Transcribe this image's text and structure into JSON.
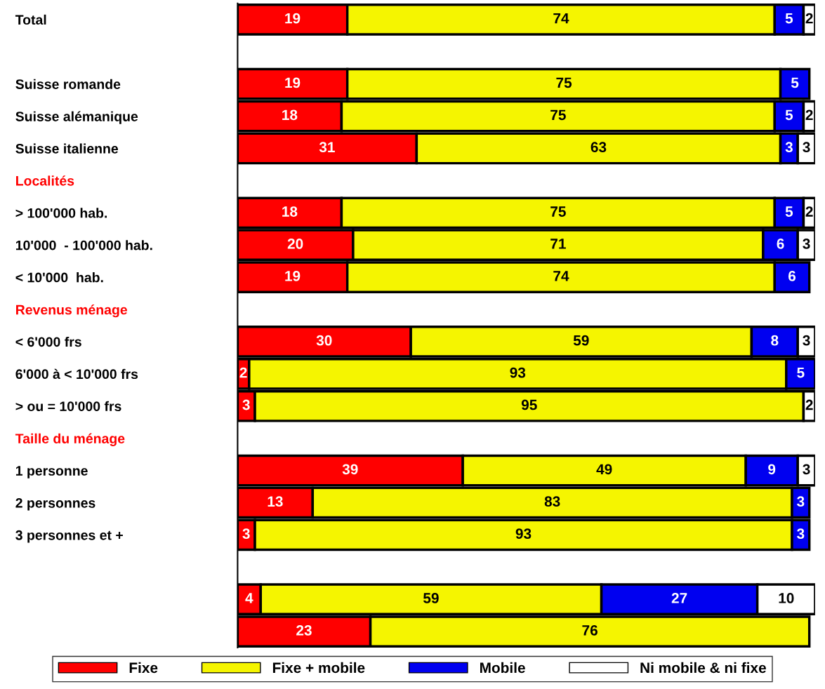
{
  "chart_data": {
    "type": "bar",
    "orientation": "horizontal",
    "stacked": true,
    "data_labels": true,
    "legend": "bottom",
    "grid": false,
    "xlim": [
      0,
      100
    ],
    "tick_labels": "y",
    "categories": [
      "Total",
      null,
      "Suisse romande",
      "Suisse alémanique",
      "Suisse italienne",
      "Localités",
      "> 100'000 hab.",
      "10'000  - 100'000 hab.",
      "< 10'000  hab.",
      "Revenus ménage",
      "< 6'000 frs",
      "6'000 à < 10'000 frs",
      "> ou = 10'000 frs",
      "Taille du ménage",
      "1 personne",
      "2 personnes",
      "3 personnes et +",
      null,
      null,
      null
    ],
    "series": [
      {
        "name": "Fixe",
        "color": "#ff0000",
        "values": [
          19,
          null,
          19,
          18,
          31,
          null,
          18,
          20,
          19,
          null,
          30,
          2,
          3,
          null,
          39,
          13,
          3,
          null,
          4,
          23
        ]
      },
      {
        "name": "Fixe + mobile",
        "color": "#f5f500",
        "values": [
          74,
          null,
          75,
          75,
          63,
          null,
          75,
          71,
          74,
          null,
          59,
          93,
          95,
          null,
          49,
          83,
          93,
          null,
          59,
          76
        ]
      },
      {
        "name": "Mobile",
        "color": "#0000f0",
        "values": [
          5,
          null,
          5,
          5,
          3,
          null,
          5,
          6,
          6,
          null,
          8,
          5,
          null,
          null,
          9,
          3,
          3,
          null,
          27,
          null
        ]
      },
      {
        "name": "Ni mobile & ni fixe",
        "color": "#ffffff",
        "values": [
          2,
          null,
          null,
          2,
          3,
          null,
          2,
          3,
          null,
          null,
          3,
          null,
          2,
          null,
          3,
          null,
          null,
          null,
          10,
          null
        ]
      }
    ]
  }
}
